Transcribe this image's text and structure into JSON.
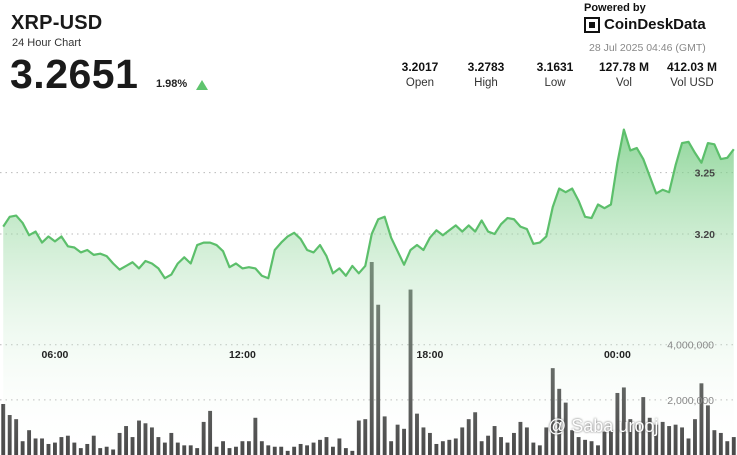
{
  "header": {
    "pair": "XRP-USD",
    "subtitle": "24 Hour Chart",
    "price": "3.2651",
    "change": "1.98%",
    "powered_by": "Powered by",
    "brand": "CoinDeskData",
    "timestamp": "28 Jul 2025 04:46 (GMT)"
  },
  "stats": [
    {
      "value": "3.2017",
      "label": "Open"
    },
    {
      "value": "3.2783",
      "label": "High"
    },
    {
      "value": "3.1631",
      "label": "Low"
    },
    {
      "value": "127.78 M",
      "label": "Vol"
    },
    {
      "value": "412.03 M",
      "label": "Vol USD"
    }
  ],
  "watermark": "@ Saba urooj",
  "colors": {
    "line": "#5cbf6b",
    "area_top": "#6cc97a",
    "area_bottom": "#ffffff",
    "volume": "#4a4a4a",
    "up_arrow": "#5fc46e"
  },
  "chart_data": {
    "type": "line",
    "x_ticks": [
      "06:00",
      "12:00",
      "18:00",
      "00:00"
    ],
    "x_tick_index": [
      8,
      37,
      66,
      95
    ],
    "price_ticks": [
      "3.25",
      "3.20"
    ],
    "price_tick_values": [
      3.25,
      3.2
    ],
    "volume_ticks": [
      "4,000,000",
      "2,000,000"
    ],
    "volume_tick_values": [
      4000000,
      2000000
    ],
    "price_range": [
      3.13,
      3.305
    ],
    "volume_range": [
      0,
      7000000
    ],
    "grid": true,
    "series": [
      {
        "kind": "price",
        "values": [
          3.206,
          3.214,
          3.215,
          3.209,
          3.199,
          3.202,
          3.193,
          3.198,
          3.194,
          3.198,
          3.19,
          3.189,
          3.185,
          3.187,
          3.183,
          3.184,
          3.182,
          3.176,
          3.171,
          3.174,
          3.177,
          3.172,
          3.178,
          3.176,
          3.172,
          3.164,
          3.167,
          3.176,
          3.181,
          3.176,
          3.191,
          3.193,
          3.193,
          3.191,
          3.186,
          3.173,
          3.176,
          3.172,
          3.173,
          3.172,
          3.166,
          3.164,
          3.187,
          3.193,
          3.198,
          3.201,
          3.196,
          3.187,
          3.185,
          3.191,
          3.182,
          3.168,
          3.172,
          3.166,
          3.174,
          3.168,
          3.174,
          3.2,
          3.212,
          3.214,
          3.197,
          3.186,
          3.175,
          3.187,
          3.191,
          3.187,
          3.197,
          3.203,
          3.199,
          3.203,
          3.207,
          3.202,
          3.207,
          3.202,
          3.211,
          3.202,
          3.2,
          3.208,
          3.213,
          3.212,
          3.206,
          3.204,
          3.192,
          3.193,
          3.198,
          3.222,
          3.237,
          3.234,
          3.237,
          3.227,
          3.214,
          3.213,
          3.224,
          3.221,
          3.224,
          3.258,
          3.285,
          3.268,
          3.27,
          3.261,
          3.247,
          3.233,
          3.236,
          3.234,
          3.256,
          3.274,
          3.275,
          3.266,
          3.258,
          3.274,
          3.273,
          3.261,
          3.262,
          3.269
        ]
      },
      {
        "kind": "volume",
        "values": [
          1850000,
          1450000,
          1300000,
          500000,
          900000,
          600000,
          600000,
          400000,
          450000,
          650000,
          700000,
          450000,
          250000,
          400000,
          700000,
          250000,
          300000,
          200000,
          800000,
          1050000,
          650000,
          1250000,
          1150000,
          1000000,
          650000,
          450000,
          800000,
          450000,
          350000,
          350000,
          250000,
          1200000,
          1600000,
          300000,
          500000,
          250000,
          300000,
          500000,
          500000,
          1350000,
          500000,
          350000,
          300000,
          300000,
          150000,
          300000,
          400000,
          350000,
          450000,
          550000,
          650000,
          300000,
          600000,
          250000,
          150000,
          1250000,
          1300000,
          7000000,
          5450000,
          1400000,
          500000,
          1100000,
          950000,
          6000000,
          1500000,
          1000000,
          800000,
          400000,
          500000,
          550000,
          600000,
          1000000,
          1300000,
          1550000,
          500000,
          700000,
          1050000,
          650000,
          450000,
          800000,
          1200000,
          1000000,
          450000,
          350000,
          1000000,
          3150000,
          2400000,
          1900000,
          900000,
          650000,
          550000,
          500000,
          350000,
          850000,
          900000,
          2250000,
          2450000,
          1300000,
          1100000,
          2100000,
          1350000,
          1100000,
          1200000,
          1050000,
          1100000,
          1000000,
          600000,
          1300000,
          2600000,
          1800000,
          900000,
          800000,
          500000,
          650000
        ]
      }
    ]
  }
}
